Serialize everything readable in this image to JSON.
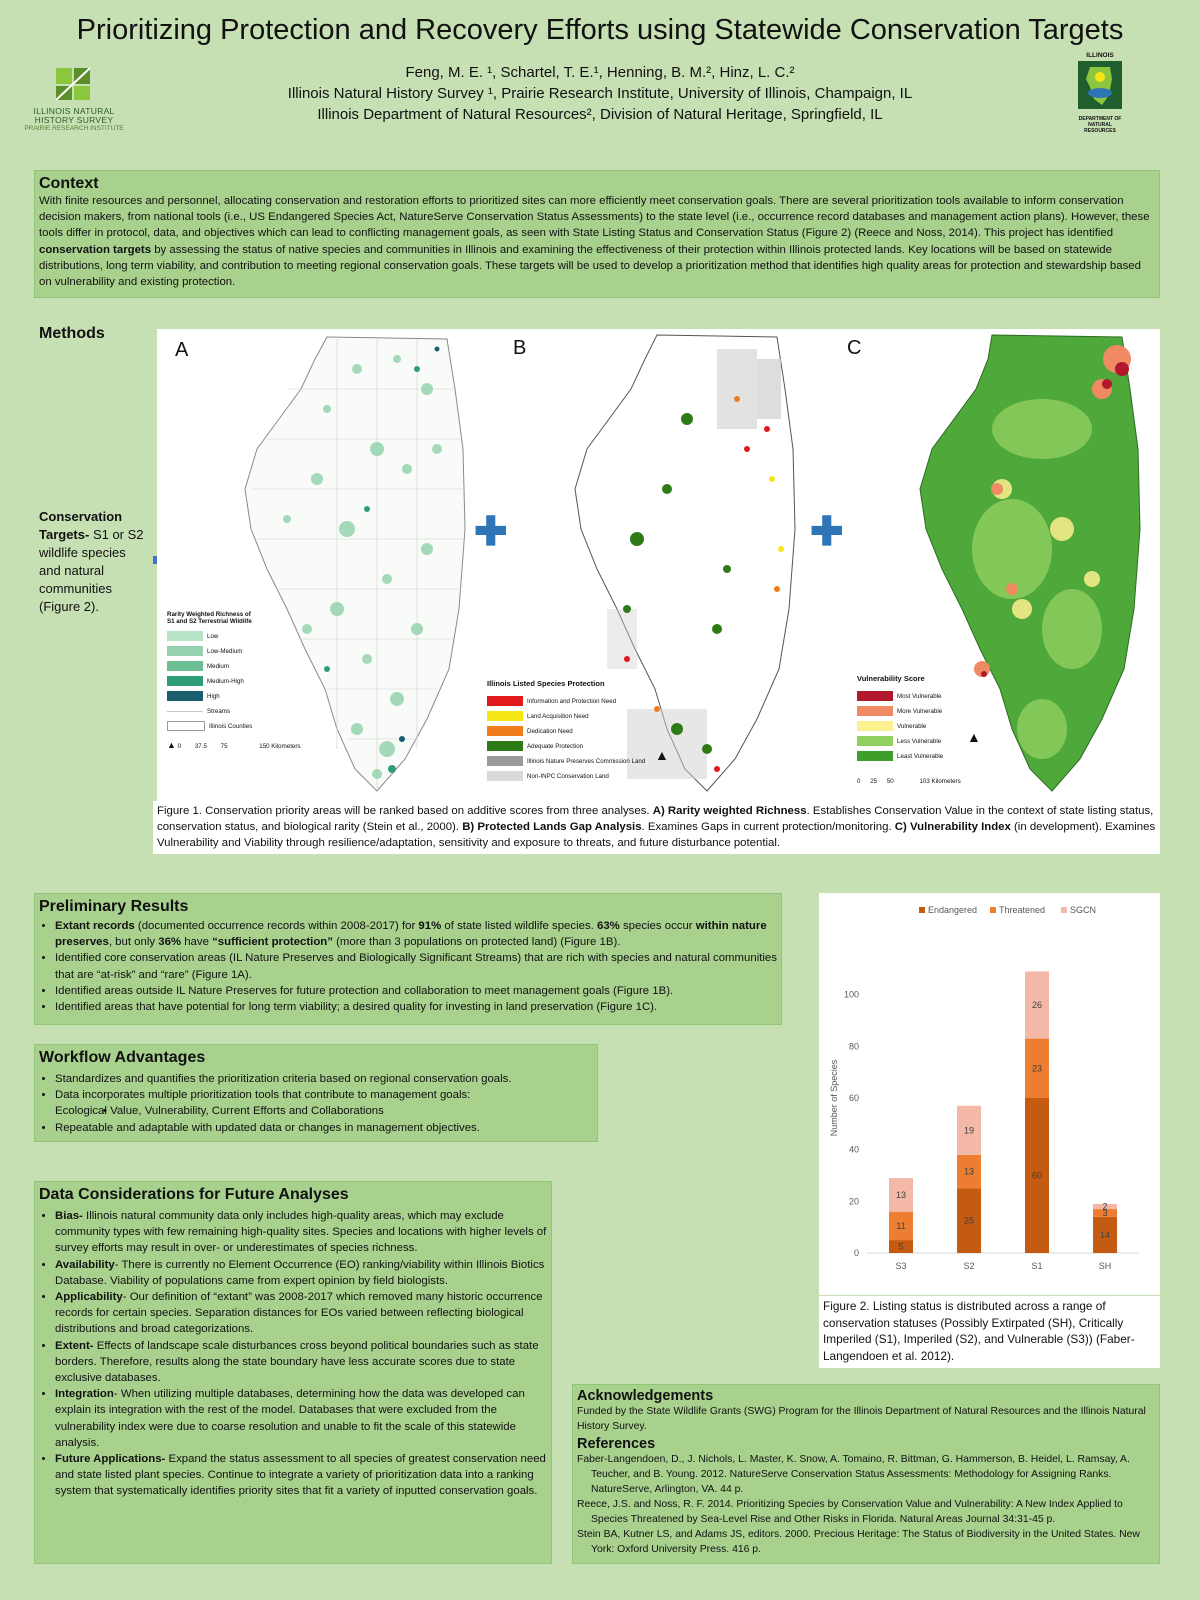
{
  "header": {
    "title": "Prioritizing Protection and Recovery Efforts using Statewide Conservation Targets",
    "authors_line": "Feng, M. E. ¹, Schartel, T. E.¹, Henning, B. M.², Hinz, L. C.²",
    "affil1": "Illinois Natural History Survey ¹, Prairie Research Institute, University of Illinois, Champaign, IL",
    "affil2": "Illinois Department of Natural Resources², Division of Natural Heritage, Springfield, IL",
    "inhs_logo_line1": "ILLINOIS NATURAL",
    "inhs_logo_line2": "HISTORY SURVEY",
    "inhs_logo_line3": "PRAIRIE RESEARCH INSTITUTE",
    "idnr_top": "ILLINOIS",
    "idnr_bottom1": "DEPARTMENT OF",
    "idnr_bottom2": "NATURAL",
    "idnr_bottom3": "RESOURCES"
  },
  "context": {
    "heading": "Context",
    "p1": "With finite resources and personnel, allocating conservation and restoration efforts to prioritized sites can more efficiently meet conservation goals. There are several prioritization tools available to inform conservation decision makers, from national tools (i.e., US Endangered Species Act, NatureServe Conservation Status Assessments) to the state level (i.e., occurrence record databases and management action plans). However, these tools differ in protocol, data, and objectives which can lead to conflicting management goals, as seen with State Listing Status and Conservation Status (Figure 2) (Reece and Noss, 2014). This project has identified ",
    "bold": "conservation targets",
    "p2": " by assessing the status of native species and communities in Illinois and examining the effectiveness of their protection within Illinois protected lands. Key locations will be based on statewide distributions, long term viability, and contribution to meeting regional conservation goals. These targets will be used to develop a prioritization method that identifies high quality areas for protection and stewardship based on vulnerability and existing protection."
  },
  "methods": {
    "heading": "Methods",
    "targets_bold": "Conservation Targets-",
    "targets_text": " S1 or S2 wildlife species and natural communities (Figure 2).",
    "letter_a": "A",
    "letter_b": "B",
    "letter_c": "C",
    "legend_a": {
      "title": "Rarity Weighted Richness of S1 and S2 Terrestrial Wildlife",
      "items": [
        "Low",
        "Low-Medium",
        "Medium",
        "Medium-High",
        "High",
        "Streams",
        "Illinois Counties"
      ],
      "colors": [
        "#b7e4c7",
        "#95d2af",
        "#6bbf93",
        "#2f9c7a",
        "#1b5e6e"
      ],
      "scale": [
        "0",
        "37.5",
        "75",
        "150 Kilometers"
      ]
    },
    "legend_b": {
      "title": "Illinois Listed Species Protection",
      "items": [
        "Information and Protection Need",
        "Land Acquisition Need",
        "Dedication Need",
        "Adequate Protection",
        "Illinois Nature Preserves Commission Land",
        "Non-INPC Conservation Land"
      ],
      "colors": [
        "#e31a1c",
        "#f5e616",
        "#f07c1b",
        "#2d7a16",
        "#9a9a9a",
        "#d9d9d9"
      ]
    },
    "legend_c": {
      "title": "Vulnerability Score",
      "items": [
        "Most Vulnerable",
        "More Vulnerable",
        "Vulnerable",
        "Less Vulnerable",
        "Least Vulnerable"
      ],
      "colors": [
        "#b2182b",
        "#ef8a62",
        "#fdf08f",
        "#91cf60",
        "#3d9e2a"
      ],
      "scale": [
        "0",
        "25",
        "50",
        "103 Kilometers"
      ]
    },
    "north": "N",
    "caption": {
      "t1": "Figure 1. Conservation priority areas will be ranked based on additive scores from three analyses. ",
      "b1": "A) Rarity weighted Richness",
      "t2": ". Establishes Conservation Value in the context of state listing status, conservation status, and biological rarity (Stein et al., 2000). ",
      "b2": "B) Protected Lands Gap Analysis",
      "t3": ". Examines Gaps in current protection/monitoring. ",
      "b3": "C) Vulnerability Index",
      "t4": " (in development). Examines Vulnerability and Viability through resilience/adaptation, sensitivity and exposure to threats, and future disturbance potential."
    }
  },
  "results": {
    "heading": "Preliminary Results",
    "items": [
      {
        "b1": "Extant records",
        "t1": " (documented occurrence records within 2008-2017) for ",
        "b2": "91%",
        "t2": " of state listed wildlife species. ",
        "b3": "63%",
        "t3": " species occur ",
        "b4": "within nature preserves",
        "t4": ", but only ",
        "b5": "36%",
        "t5": " have ",
        "b6": "“sufficient protection”",
        "t6": " (more than 3 populations on protected land) (Figure 1B)."
      },
      {
        "t": "Identified core conservation areas (IL Nature Preserves and Biologically Significant Streams) that are rich with species and natural communities that are “at-risk” and “rare” (Figure 1A)."
      },
      {
        "t": "Identified areas outside IL Nature Preserves for future protection and collaboration to meet management goals (Figure 1B)."
      },
      {
        "t": "Identified areas that have potential for long term viability; a desired quality for investing in land preservation (Figure 1C)."
      }
    ]
  },
  "workflow": {
    "heading": "Workflow Advantages",
    "items": [
      "Standardizes and quantifies the prioritization criteria based on regional conservation goals.",
      "Data incorporates multiple prioritization tools that contribute to management goals:",
      "Ecological Value, Vulnerability, Current Efforts and Collaborations",
      "Repeatable and adaptable with updated data or changes in management objectives."
    ]
  },
  "considerations": {
    "heading": "Data Considerations for Future Analyses",
    "items": [
      {
        "b": "Bias-",
        "t": " Illinois natural community data only includes high-quality areas, which may exclude community types with few remaining high-quality sites. Species and locations with higher levels of survey efforts may result in over- or underestimates of species richness."
      },
      {
        "b": "Availability",
        "t": "- There is currently no Element Occurrence (EO) ranking/viability within Illinois Biotics Database. Viability of populations came from expert opinion by field biologists."
      },
      {
        "b": "Applicability",
        "t": "- Our definition of “extant” was 2008-2017 which removed many historic occurrence records for certain species. Separation distances for EOs varied between reflecting biological distributions and broad categorizations."
      },
      {
        "b": "Extent-",
        "t": " Effects of landscape scale disturbances cross beyond political boundaries such as state borders. Therefore, results along the state boundary have less accurate scores due to state exclusive databases."
      },
      {
        "b": "Integration",
        "t": "- When utilizing multiple databases, determining how the data was developed can explain its integration with the rest of the model. Databases that were excluded from the vulnerability index were due to coarse resolution and unable to fit the scale of this statewide analysis."
      },
      {
        "b": "Future Applications-",
        "t": " Expand the status assessment to all species of greatest conservation need and state listed plant species. Continue to integrate a variety of prioritization data into a ranking system that systematically identifies priority sites that fit a variety of inputted conservation goals."
      }
    ]
  },
  "acknowledgements": {
    "heading": "Acknowledgements",
    "text": "Funded by the State Wildlife Grants (SWG) Program for the Illinois Department of Natural Resources and the Illinois Natural History Survey."
  },
  "references": {
    "heading": "References",
    "items": [
      "Faber-Langendoen, D., J. Nichols, L. Master, K. Snow, A. Tomaino, R. Bittman, G. Hammerson, B. Heidel, L. Ramsay, A. Teucher, and B. Young. 2012. NatureServe Conservation Status Assessments: Methodology for Assigning Ranks. NatureServe, Arlington, VA. 44 p.",
      "Reece, J.S. and Noss, R. F. 2014. Prioritizing Species by Conservation Value and Vulnerability: A New Index Applied to Species Threatened by Sea-Level Rise and Other Risks in Florida. Natural Areas Journal 34:31-45 p.",
      "Stein BA, Kutner LS, and Adams JS, editors. 2000. Precious Heritage: The Status of Biodiversity in the United States. New York: Oxford University Press. 416 p."
    ]
  },
  "figure2": {
    "caption": "Figure 2. Listing status is distributed across a range of conservation statuses (Possibly Extirpated (SH), Critically Imperiled (S1), Imperiled (S2), and Vulnerable (S3)) (Faber-Langendoen et al. 2012)."
  },
  "chart_data": {
    "type": "bar",
    "stacked": true,
    "categories": [
      "S3",
      "S2",
      "S1",
      "SH"
    ],
    "series": [
      {
        "name": "Endangered",
        "values": [
          5,
          25,
          60,
          14
        ],
        "color": "#c55a11"
      },
      {
        "name": "Threatened",
        "values": [
          11,
          13,
          23,
          3
        ],
        "color": "#ed7d31"
      },
      {
        "name": "SGCN",
        "values": [
          13,
          19,
          26,
          2
        ],
        "color": "#f4b9a6"
      }
    ],
    "ylabel": "Number of Species",
    "ylim": [
      0,
      120
    ],
    "yticks": [
      0,
      20,
      40,
      60,
      80,
      100
    ],
    "legend_position": "top",
    "grid": false
  }
}
